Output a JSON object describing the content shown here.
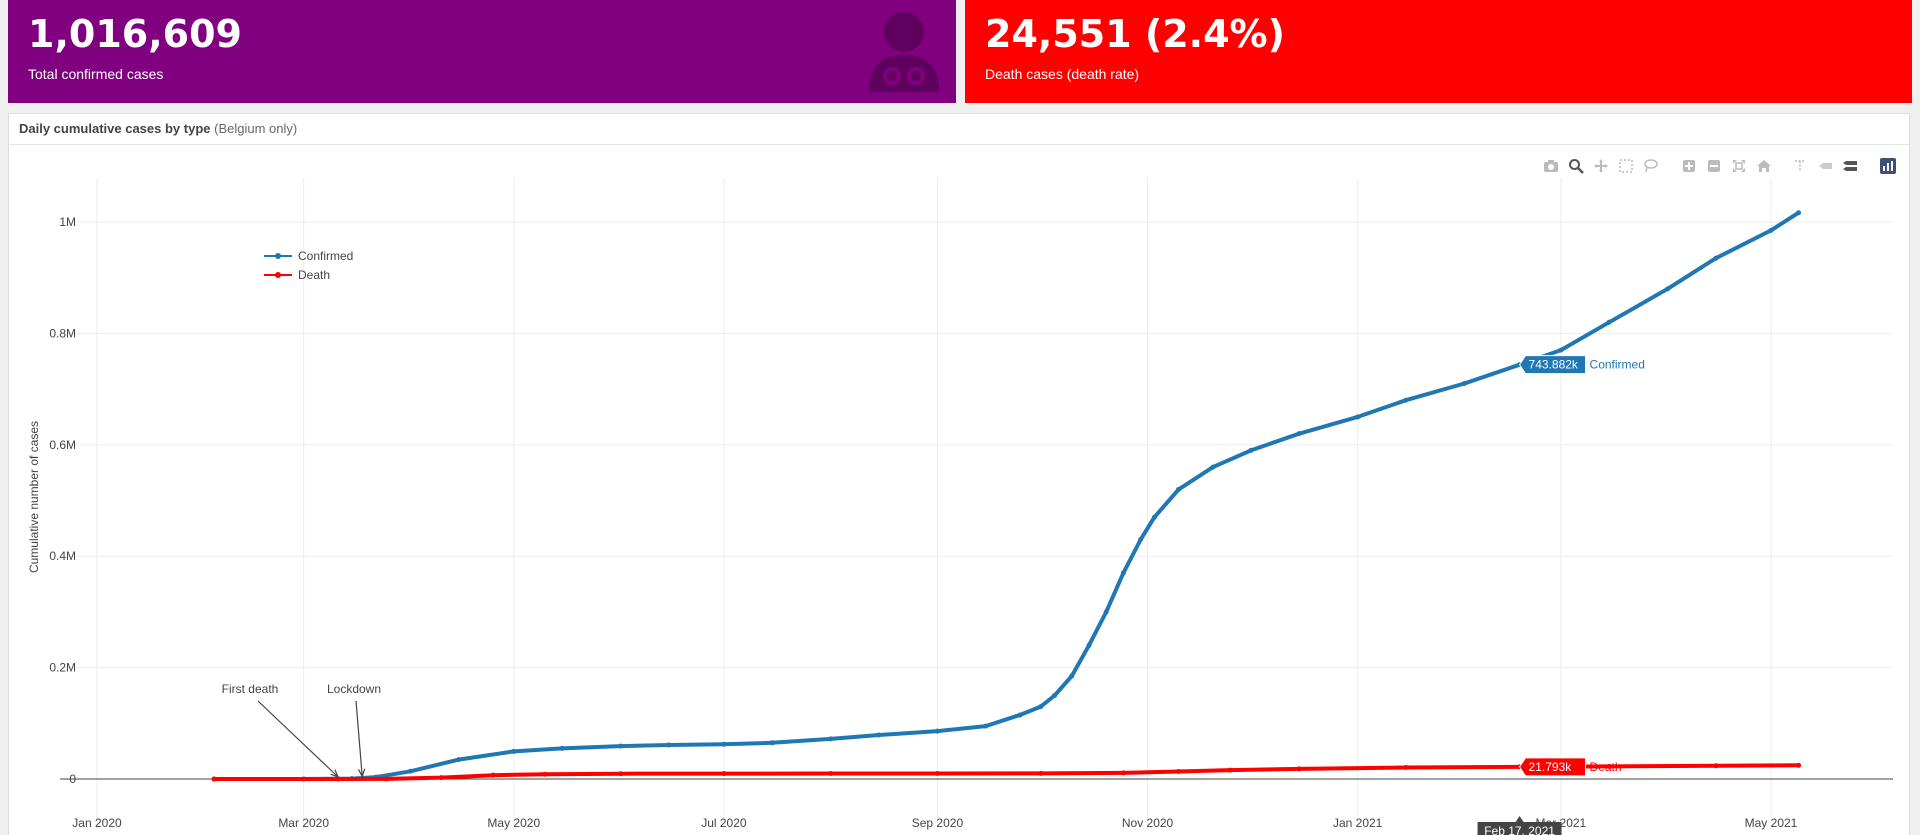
{
  "confirmed_box": {
    "value": "1,016,609",
    "label": "Total confirmed cases",
    "icon": "doctor-icon",
    "color": "#800080"
  },
  "death_box": {
    "value": "24,551 (2.4%)",
    "label": "Death cases (death rate)",
    "color": "#ff0000"
  },
  "chart_panel": {
    "title": "Daily cumulative cases by type",
    "subtitle": "(Belgium only)"
  },
  "modebar": [
    "camera-icon",
    "zoom-icon",
    "pan-icon",
    "box-select-icon",
    "lasso-icon",
    "zoom-in-icon",
    "zoom-out-icon",
    "autoscale-icon",
    "reset-axes-icon",
    "spike-lines-icon",
    "hover-closest-icon",
    "hover-compare-icon",
    "plotly-logo-icon"
  ],
  "chart_data": {
    "type": "line",
    "ylabel": "Cumulative number of cases",
    "x_ticks": [
      "Jan 2020",
      "Mar 2020",
      "May 2020",
      "Jul 2020",
      "Sep 2020",
      "Nov 2020",
      "Jan 2021",
      "Mar 2021",
      "May 2021"
    ],
    "y_ticks": [
      "0",
      "0.2M",
      "0.4M",
      "0.6M",
      "0.8M",
      "1M"
    ],
    "ylim": [
      -20000,
      1070000
    ],
    "grid": true,
    "legend_position": "top-left",
    "series": [
      {
        "name": "Confirmed",
        "color": "#1f77b4",
        "x": [
          "2020-02-04",
          "2020-03-01",
          "2020-03-15",
          "2020-03-22",
          "2020-04-01",
          "2020-04-15",
          "2020-05-01",
          "2020-05-15",
          "2020-06-01",
          "2020-06-15",
          "2020-07-01",
          "2020-07-15",
          "2020-08-01",
          "2020-08-15",
          "2020-09-01",
          "2020-09-15",
          "2020-09-25",
          "2020-10-01",
          "2020-10-05",
          "2020-10-10",
          "2020-10-15",
          "2020-10-20",
          "2020-10-25",
          "2020-10-30",
          "2020-11-03",
          "2020-11-10",
          "2020-11-20",
          "2020-12-01",
          "2020-12-15",
          "2021-01-01",
          "2021-01-15",
          "2021-02-01",
          "2021-02-17",
          "2021-03-01",
          "2021-03-15",
          "2021-04-01",
          "2021-04-15",
          "2021-05-01",
          "2021-05-09"
        ],
        "y": [
          1,
          2,
          700,
          3400,
          13900,
          34800,
          49500,
          55000,
          59000,
          61000,
          62500,
          65000,
          72000,
          79000,
          86000,
          95000,
          115000,
          130000,
          150000,
          185000,
          240000,
          300000,
          370000,
          430000,
          470000,
          520000,
          560000,
          590000,
          620000,
          650000,
          680000,
          710000,
          743882,
          770000,
          820000,
          880000,
          935000,
          985000,
          1016609
        ]
      },
      {
        "name": "Death",
        "color": "#ff0000",
        "x": [
          "2020-02-04",
          "2020-03-11",
          "2020-03-25",
          "2020-04-10",
          "2020-04-25",
          "2020-05-10",
          "2020-06-01",
          "2020-07-01",
          "2020-08-01",
          "2020-09-01",
          "2020-10-01",
          "2020-10-25",
          "2020-11-10",
          "2020-11-25",
          "2020-12-15",
          "2021-01-15",
          "2021-02-17",
          "2021-03-15",
          "2021-04-15",
          "2021-05-09"
        ],
        "y": [
          0,
          3,
          250,
          2500,
          6900,
          8600,
          9500,
          9750,
          9850,
          9900,
          10100,
          11000,
          13500,
          16000,
          18200,
          20600,
          21793,
          22600,
          23700,
          24551
        ]
      }
    ],
    "annotations": [
      {
        "text": "First death",
        "x": "2020-03-11",
        "y": 3
      },
      {
        "text": "Lockdown",
        "x": "2020-03-18",
        "y": 1000
      }
    ],
    "hover": {
      "date": "Feb 17, 2021",
      "labels": [
        {
          "series": "Confirmed",
          "value": "743.882k"
        },
        {
          "series": "Death",
          "value": "21.793k"
        }
      ]
    }
  }
}
